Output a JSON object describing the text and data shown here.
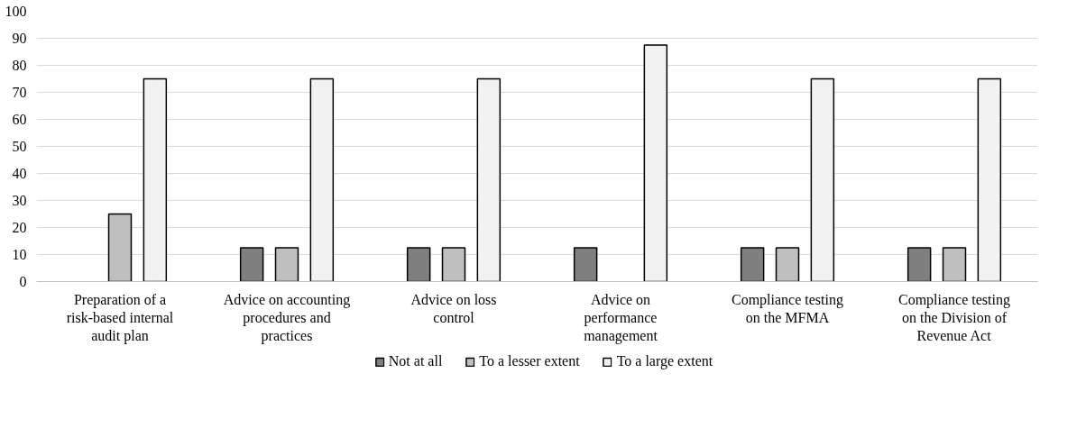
{
  "chart_data": {
    "type": "bar",
    "categories": [
      "Preparation of a risk-based internal audit plan",
      "Advice on accounting procedures and practices",
      "Advice on loss control",
      "Advice on performance management",
      "Compliance testing on the MFMA",
      "Compliance testing on the Division of Revenue Act"
    ],
    "series": [
      {
        "name": "Not at all",
        "color": "#7f7f7f",
        "values": [
          null,
          12.5,
          12.5,
          12.5,
          12.5,
          12.5
        ]
      },
      {
        "name": "To a lesser extent",
        "color": "#bfbfbf",
        "values": [
          25,
          12.5,
          12.5,
          null,
          12.5,
          12.5
        ]
      },
      {
        "name": "To a large extent",
        "color": "#f2f2f2",
        "values": [
          75,
          75,
          75,
          87.5,
          75,
          75
        ]
      }
    ],
    "ylim": [
      0,
      100
    ],
    "yticks": [
      0,
      10,
      20,
      30,
      40,
      50,
      60,
      70,
      80,
      90,
      100
    ],
    "grid": "y",
    "legend": "bottom"
  }
}
